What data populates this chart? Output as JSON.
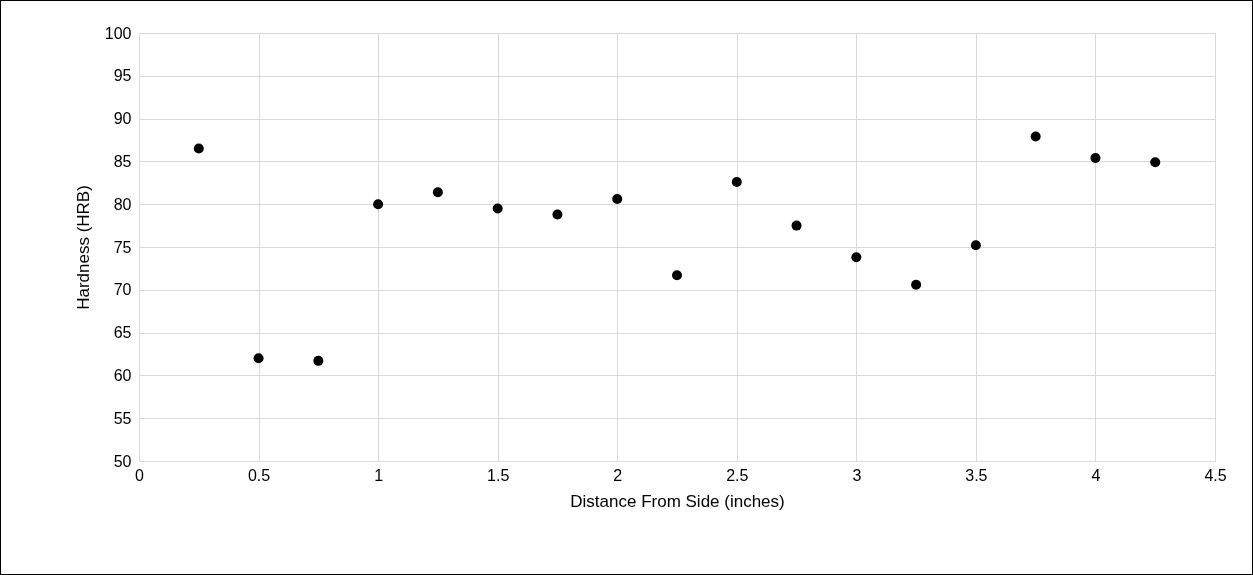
{
  "chart_data": {
    "type": "scatter",
    "xlabel": "Distance From Side (inches)",
    "ylabel": "Hardness (HRB)",
    "x": [
      0.25,
      0.5,
      0.75,
      1,
      1.25,
      1.5,
      1.75,
      2,
      2.25,
      2.5,
      2.75,
      3,
      3.25,
      3.5,
      3.75,
      4,
      4.25
    ],
    "series": [
      {
        "color": "#000000",
        "values": [
          86.5,
          62,
          61.7,
          80,
          81.4,
          79.5,
          78.8,
          80.6,
          71.7,
          82.6,
          77.5,
          73.8,
          70.6,
          75.2,
          87.9,
          85.4,
          84.9
        ]
      }
    ],
    "xlim": [
      0,
      4.5
    ],
    "xticks": [
      0,
      0.5,
      1,
      1.5,
      2,
      2.5,
      3,
      3.5,
      4,
      4.5
    ],
    "ylim": [
      50,
      100
    ],
    "yticks": [
      50,
      55,
      60,
      65,
      70,
      75,
      80,
      85,
      90,
      95,
      100
    ],
    "grid": true,
    "marker": "circle"
  }
}
